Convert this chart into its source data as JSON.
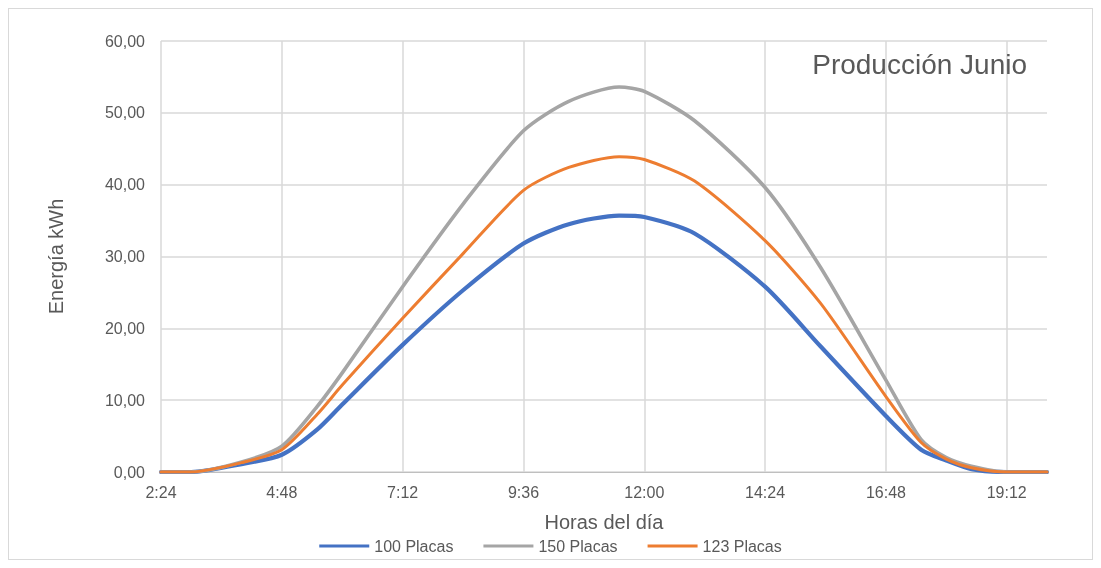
{
  "chart_data": {
    "type": "line",
    "title": "Producción Junio",
    "xlabel": "Horas del día",
    "ylabel": "Energía kWh",
    "x": [
      2.4,
      3,
      4,
      4.8,
      5.5,
      6,
      7.2,
      8.4,
      9.6,
      10.5,
      11.5,
      12,
      13,
      14.4,
      15.5,
      16.8,
      17.5,
      18,
      18.5,
      19.2,
      20
    ],
    "series": [
      {
        "name": "100 Placas",
        "color": "#4472c4",
        "values": [
          0,
          0,
          1.1,
          2.4,
          5.9,
          9.4,
          17.7,
          25.3,
          31.8,
          34.5,
          35.7,
          35.5,
          33.2,
          25.8,
          17.5,
          7.8,
          3.1,
          1.6,
          0.4,
          0,
          0
        ]
      },
      {
        "name": "150 Placas",
        "color": "#a5a5a5",
        "values": [
          0,
          0,
          1.4,
          3.6,
          9.1,
          13.8,
          25.8,
          37.3,
          47.5,
          51.6,
          53.6,
          53,
          48.9,
          39.6,
          28.5,
          12.8,
          4.5,
          2,
          0.8,
          0,
          0
        ]
      },
      {
        "name": "123 Placas",
        "color": "#ed7d31",
        "values": [
          0,
          0,
          1.3,
          3.1,
          8,
          12.1,
          21.4,
          30.4,
          39.2,
          42.4,
          43.9,
          43.5,
          40.5,
          32.2,
          23.5,
          10.5,
          4.1,
          1.8,
          0.6,
          0,
          0
        ]
      }
    ],
    "xlim": [
      2.4,
      20
    ],
    "xticks": [
      {
        "value": 2.4,
        "label": "2:24"
      },
      {
        "value": 4.8,
        "label": "4:48"
      },
      {
        "value": 7.2,
        "label": "7:12"
      },
      {
        "value": 9.6,
        "label": "9:36"
      },
      {
        "value": 12,
        "label": "12:00"
      },
      {
        "value": 14.4,
        "label": "14:24"
      },
      {
        "value": 16.8,
        "label": "16:48"
      },
      {
        "value": 19.2,
        "label": "19:12"
      }
    ],
    "ylim": [
      0,
      60
    ],
    "yticks": [
      {
        "value": 0,
        "label": "0,00"
      },
      {
        "value": 10,
        "label": "10,00"
      },
      {
        "value": 20,
        "label": "20,00"
      },
      {
        "value": 30,
        "label": "30,00"
      },
      {
        "value": 40,
        "label": "40,00"
      },
      {
        "value": 50,
        "label": "50,00"
      },
      {
        "value": 60,
        "label": "60,00"
      }
    ],
    "grid": true,
    "legend": "bottom",
    "marker": "none",
    "line_style": "solid"
  }
}
